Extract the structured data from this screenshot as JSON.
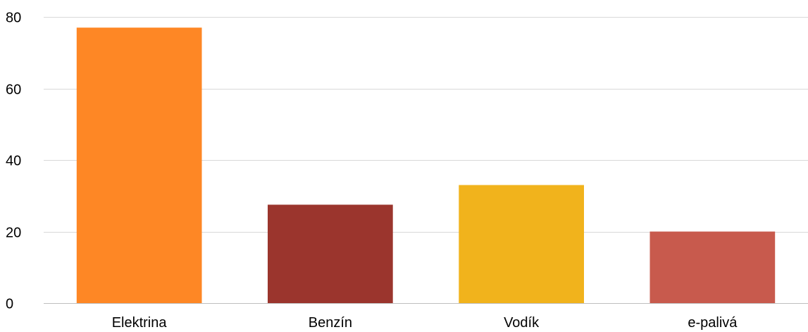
{
  "chart_data": {
    "type": "bar",
    "title": "",
    "xlabel": "",
    "ylabel": "",
    "categories": [
      "Elektrina",
      "Benzín",
      "Vodík",
      "e-palivá"
    ],
    "values": [
      77,
      27.5,
      33,
      20
    ],
    "colors": [
      "#fe8725",
      "#9b352d",
      "#f1b31c",
      "#c85a4d"
    ],
    "ylim": [
      0,
      80
    ],
    "yticks": [
      0,
      20,
      40,
      60,
      80
    ],
    "grid": true,
    "legend": "none"
  }
}
